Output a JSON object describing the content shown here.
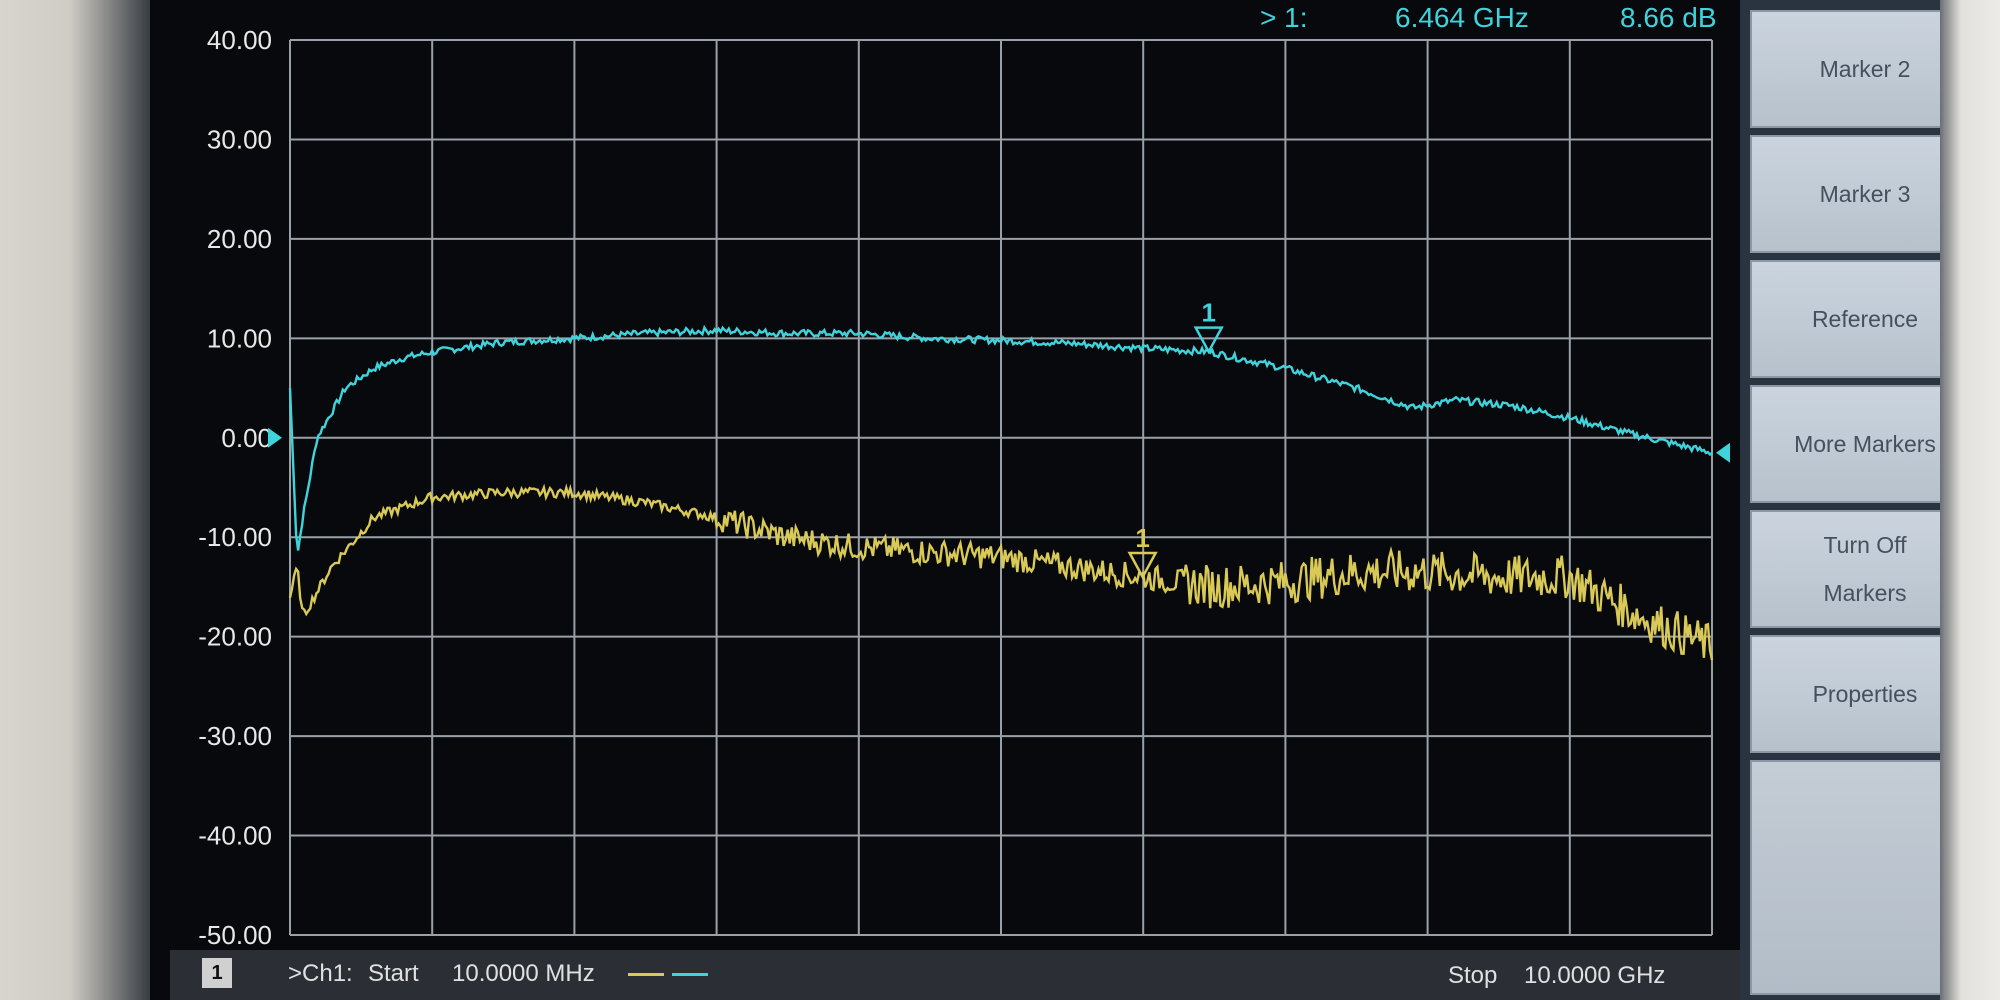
{
  "chart_data": {
    "type": "line",
    "x_start_label": "Start",
    "x_start_value": "10.0000 MHz",
    "x_stop_label": "Stop",
    "x_stop_value": "10.0000 GHz",
    "x_range_ghz": [
      0.01,
      10.0
    ],
    "ylim": [
      -50,
      40
    ],
    "y_ticks": [
      "40.00",
      "30.00",
      "20.00",
      "10.00",
      "0.00",
      "-10.00",
      "-20.00",
      "-30.00",
      "-40.00",
      "-50.00"
    ],
    "grid": true,
    "channel_label": ">Ch1:",
    "window_number": "1",
    "marker_readout": {
      "id": "> 1:",
      "freq": "6.464 GHz",
      "value": "8.66 dB"
    },
    "series": [
      {
        "color": "#3fd3dc",
        "marker_label": "1",
        "marker_x": 6.464,
        "marker_y": 8.66,
        "points": [
          [
            0.01,
            5
          ],
          [
            0.06,
            -12
          ],
          [
            0.1,
            -8
          ],
          [
            0.2,
            0
          ],
          [
            0.4,
            5
          ],
          [
            0.6,
            7
          ],
          [
            0.8,
            8
          ],
          [
            1.0,
            8.6
          ],
          [
            1.5,
            9.6
          ],
          [
            2.0,
            10
          ],
          [
            2.5,
            10.5
          ],
          [
            3.0,
            10.8
          ],
          [
            3.5,
            10.5
          ],
          [
            4.0,
            10.5
          ],
          [
            4.5,
            10
          ],
          [
            5.0,
            9.8
          ],
          [
            5.5,
            9.5
          ],
          [
            6.0,
            9
          ],
          [
            6.464,
            8.66
          ],
          [
            7.0,
            7
          ],
          [
            7.5,
            5
          ],
          [
            7.9,
            3
          ],
          [
            8.2,
            3.8
          ],
          [
            8.6,
            3.2
          ],
          [
            9.0,
            2
          ],
          [
            9.4,
            0.5
          ],
          [
            10.0,
            -1.5
          ]
        ]
      },
      {
        "color": "#d9c956",
        "marker_label": "1",
        "marker_x": 6.0,
        "marker_y": -14,
        "points": [
          [
            0.01,
            -16
          ],
          [
            0.06,
            -13
          ],
          [
            0.1,
            -18
          ],
          [
            0.3,
            -13
          ],
          [
            0.6,
            -8
          ],
          [
            1.0,
            -6
          ],
          [
            1.5,
            -5.5
          ],
          [
            2.0,
            -5.5
          ],
          [
            2.5,
            -6.5
          ],
          [
            3.0,
            -8
          ],
          [
            3.5,
            -10
          ],
          [
            4.0,
            -11
          ],
          [
            4.5,
            -11.5
          ],
          [
            5.0,
            -12
          ],
          [
            5.5,
            -13
          ],
          [
            6.0,
            -14
          ],
          [
            6.5,
            -15
          ],
          [
            7.0,
            -14.5
          ],
          [
            7.5,
            -13.5
          ],
          [
            8.0,
            -13.5
          ],
          [
            8.5,
            -14
          ],
          [
            9.0,
            -14
          ],
          [
            9.5,
            -18
          ],
          [
            10.0,
            -21
          ]
        ]
      }
    ]
  },
  "softkeys": [
    {
      "label": "Marker 2"
    },
    {
      "label": "Marker 3"
    },
    {
      "label": "Reference"
    },
    {
      "label": "More Markers"
    },
    {
      "label": "Turn Off Markers"
    },
    {
      "label": "Properties"
    },
    {
      "label": ""
    }
  ]
}
